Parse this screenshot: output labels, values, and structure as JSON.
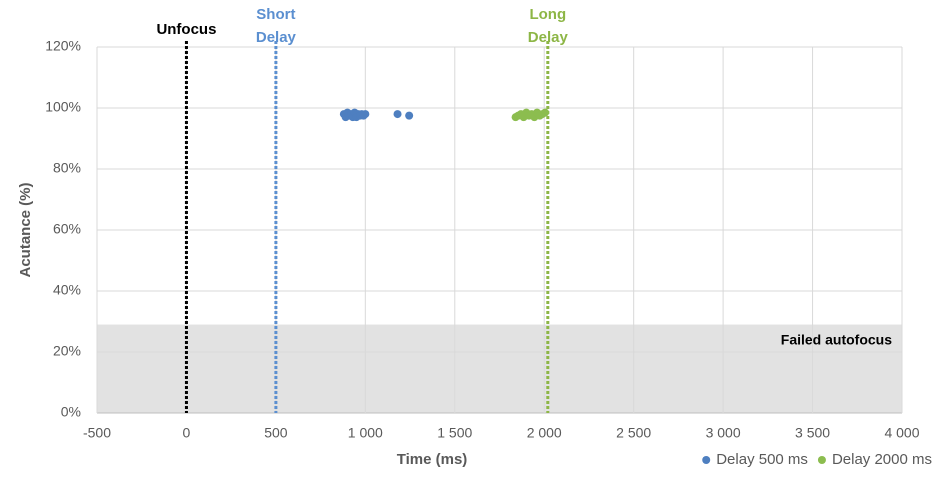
{
  "chart_data": {
    "type": "scatter",
    "xlabel": "Time (ms)",
    "ylabel": "Acutance (%)",
    "xlim": [
      -500,
      4000
    ],
    "ylim": [
      0,
      120
    ],
    "xticks": [
      -500,
      0,
      500,
      {
        "value": 1000,
        "label": "1 000"
      },
      {
        "value": 1500,
        "label": "1 500"
      },
      {
        "value": 2000,
        "label": "2 000"
      },
      {
        "value": 2500,
        "label": "2 500"
      },
      {
        "value": 3000,
        "label": "3 000"
      },
      {
        "value": 3500,
        "label": "3 500"
      },
      {
        "value": 4000,
        "label": "4 000"
      }
    ],
    "yticks": [
      {
        "value": 0,
        "label": "0%"
      },
      {
        "value": 20,
        "label": "20%"
      },
      {
        "value": 40,
        "label": "40%"
      },
      {
        "value": 60,
        "label": "60%"
      },
      {
        "value": 80,
        "label": "80%"
      },
      {
        "value": 100,
        "label": "100%"
      },
      {
        "value": 120,
        "label": "120%"
      }
    ],
    "grid": true,
    "legend": "bottom-right",
    "shaded_region": {
      "label": "Failed autofocus",
      "ylim": [
        0,
        29
      ],
      "color": "#e2e2e2"
    },
    "reference_lines": [
      {
        "label": "Unfocus",
        "x": 0,
        "color": "#000000"
      },
      {
        "label": "Short Delay",
        "x": 500,
        "color": "#5b8fd0"
      },
      {
        "label": "Long Delay",
        "x": 2020,
        "color": "#8db646"
      }
    ],
    "series": [
      {
        "name": "Delay 500 ms",
        "color": "#4e7fc0",
        "x": [
          880,
          890,
          900,
          910,
          920,
          930,
          940,
          950,
          960,
          970,
          980,
          990,
          1000,
          1180,
          1245
        ],
        "values": [
          98,
          97,
          98.5,
          97.5,
          98,
          97,
          98.5,
          97,
          98,
          97.5,
          98,
          97.5,
          98,
          98,
          97.5
        ]
      },
      {
        "name": "Delay 2000 ms",
        "color": "#8cbd4f",
        "x": [
          1840,
          1855,
          1870,
          1885,
          1900,
          1915,
          1930,
          1945,
          1960,
          1975,
          1990,
          2005
        ],
        "values": [
          97,
          97.5,
          98,
          97,
          98.5,
          97.5,
          98,
          97,
          98.5,
          97.5,
          98,
          98.5
        ]
      }
    ]
  }
}
